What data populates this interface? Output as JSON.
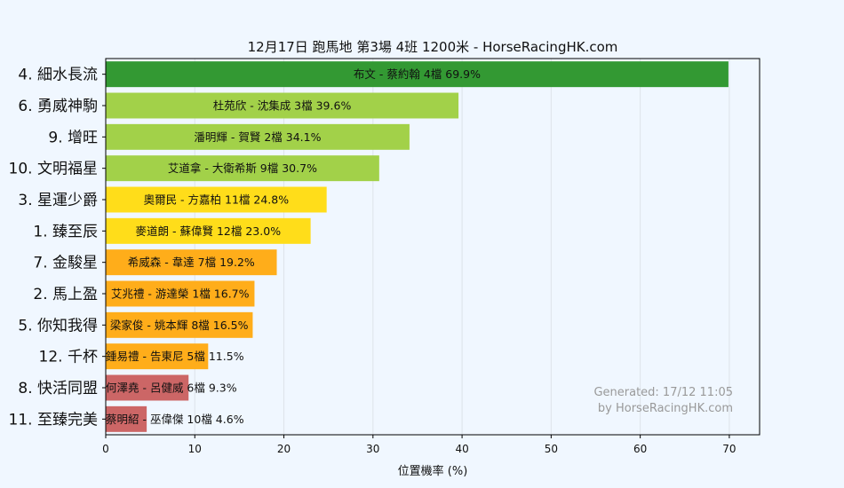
{
  "chart_data": {
    "type": "bar",
    "orientation": "horizontal",
    "title": "12月17日  跑馬地  第3場  4班  1200米 - HorseRacingHK.com",
    "xlabel": "位置機率 (%)",
    "ylabel": "",
    "xlim": [
      0,
      73.4
    ],
    "xticks": [
      0,
      10,
      20,
      30,
      40,
      50,
      60,
      70
    ],
    "grid": true,
    "categories": [
      "4. 細水長流",
      "6. 勇威神駒",
      "9. 增旺",
      "10. 文明福星",
      "3. 星運少爵",
      "1. 臻至辰",
      "7. 金駿星",
      "2. 馬上盈",
      "5. 你知我得",
      "12. 千杯",
      "8. 快活同盟",
      "11. 至臻完美"
    ],
    "values": [
      69.9,
      39.6,
      34.1,
      30.7,
      24.8,
      23.0,
      19.2,
      16.7,
      16.5,
      11.5,
      9.3,
      4.6
    ],
    "bar_labels": [
      "布文 - 蔡約翰 4檔  69.9%",
      "杜苑欣 - 沈集成 3檔  39.6%",
      "潘明輝 - 賀賢 2檔  34.1%",
      "艾道拿 - 大衛希斯 9檔  30.7%",
      "奧爾民 - 方嘉柏 11檔  24.8%",
      "麥道朗 - 蘇偉賢 12檔  23.0%",
      "希威森 - 韋達 7檔  19.2%",
      "艾兆禮 - 游達榮 1檔  16.7%",
      "梁家俊 - 姚本輝 8檔  16.5%",
      "鍾易禮 - 告東尼 5檔  11.5%",
      "何澤堯 - 呂健威 6檔  9.3%",
      "蔡明紹 - 巫偉傑 10檔  4.6%"
    ],
    "colors": [
      "#339933",
      "#a2d149",
      "#a2d149",
      "#a2d149",
      "#ffdd1a",
      "#ffdd1a",
      "#ffad1a",
      "#ffad1a",
      "#ffad1a",
      "#ffad1a",
      "#cc6666",
      "#cc6666"
    ]
  },
  "footer": {
    "line1": "Generated: 17/12 11:05",
    "line2": "by HorseRacingHK.com"
  }
}
